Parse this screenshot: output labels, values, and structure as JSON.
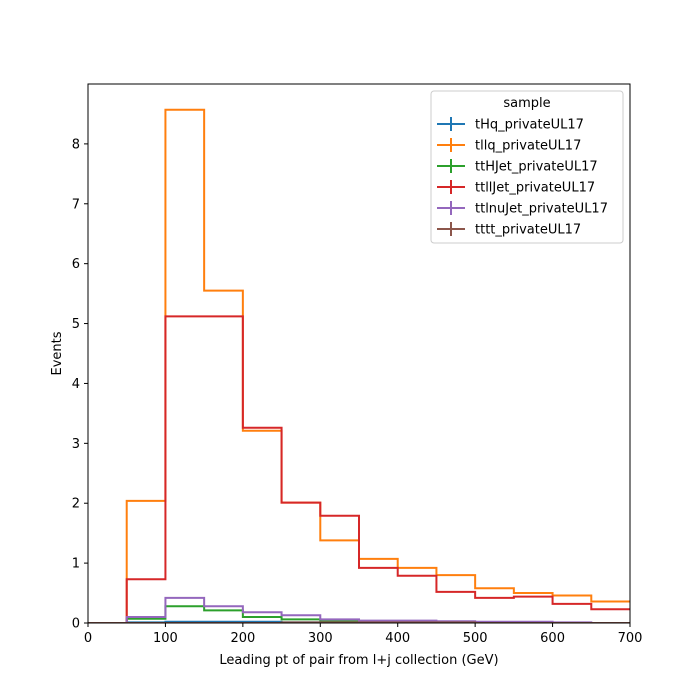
{
  "chart_data": {
    "type": "histogram-step",
    "xlabel": "Leading pt of pair from l+j collection (GeV)",
    "ylabel": "Events",
    "xlim": [
      0,
      700
    ],
    "ylim": [
      0,
      9.0
    ],
    "xticks": [
      0,
      100,
      200,
      300,
      400,
      500,
      600,
      700
    ],
    "yticks": [
      0,
      1,
      2,
      3,
      4,
      5,
      6,
      7,
      8
    ],
    "bin_edges": [
      0,
      50,
      100,
      150,
      200,
      250,
      300,
      350,
      400,
      450,
      500,
      550,
      600,
      650,
      700
    ],
    "grid": false,
    "legend": {
      "title": "sample",
      "placement": "top-right"
    },
    "series": [
      {
        "name": "tHq_privateUL17",
        "color": "#1f77b4",
        "values": [
          0,
          0.01,
          0.02,
          0.02,
          0.02,
          0.01,
          0.01,
          0.01,
          0.01,
          0.0,
          0.0,
          0.0,
          0.0,
          0.0
        ]
      },
      {
        "name": "tllq_privateUL17",
        "color": "#ff7f0e",
        "values": [
          0,
          2.04,
          8.57,
          5.55,
          3.21,
          2.01,
          1.38,
          1.07,
          0.92,
          0.8,
          0.58,
          0.5,
          0.46,
          0.36
        ]
      },
      {
        "name": "ttHJet_privateUL17",
        "color": "#2ca02c",
        "values": [
          0,
          0.07,
          0.28,
          0.21,
          0.1,
          0.06,
          0.03,
          0.02,
          0.02,
          0.01,
          0.01,
          0.0,
          0.0,
          0.0
        ]
      },
      {
        "name": "ttllJet_privateUL17",
        "color": "#d62728",
        "values": [
          0,
          0.73,
          5.12,
          5.12,
          3.26,
          2.01,
          1.79,
          0.92,
          0.79,
          0.52,
          0.42,
          0.44,
          0.32,
          0.23
        ]
      },
      {
        "name": "ttlnuJet_privateUL17",
        "color": "#9467bd",
        "values": [
          0,
          0.1,
          0.42,
          0.28,
          0.18,
          0.13,
          0.06,
          0.04,
          0.04,
          0.03,
          0.02,
          0.02,
          0.01,
          0.0
        ]
      },
      {
        "name": "tttt_privateUL17",
        "color": "#8c564b",
        "values": [
          0,
          0.0,
          0.0,
          0.0,
          0.0,
          0.01,
          0.01,
          0.01,
          0.01,
          0.01,
          0.0,
          0.0,
          0.0,
          0.0
        ]
      }
    ]
  }
}
